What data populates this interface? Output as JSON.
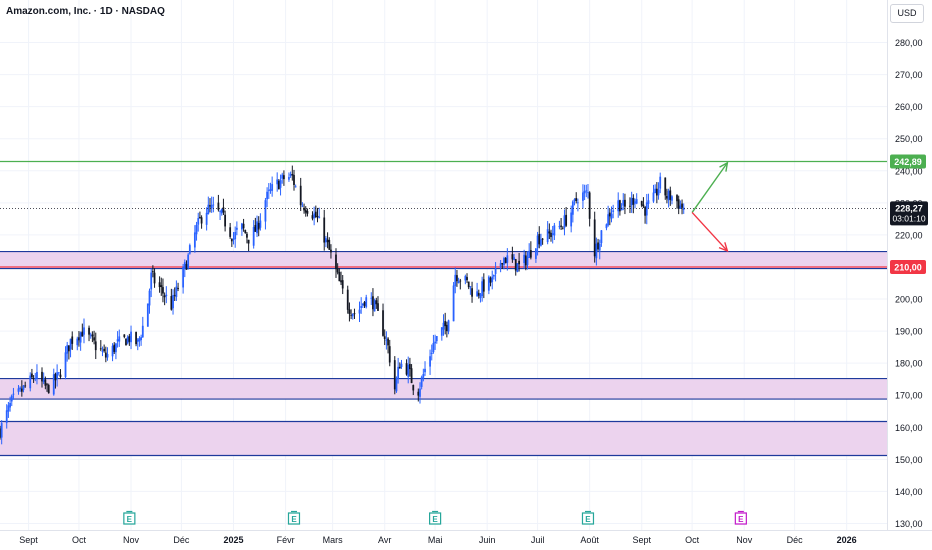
{
  "header": {
    "title": "Amazon.com, Inc. · 1D · NASDAQ",
    "currency": "USD"
  },
  "chart_data": {
    "type": "candlestick",
    "symbol": "Amazon.com, Inc.",
    "interval": "1D",
    "exchange": "NASDAQ",
    "currency": "USD",
    "ylim": [
      130,
      285
    ],
    "y_ticks": [
      130,
      140,
      150,
      160,
      170,
      180,
      190,
      200,
      210,
      220,
      230,
      240,
      250,
      260,
      270,
      280
    ],
    "y_tick_labels": [
      "130,00",
      "140,00",
      "150,00",
      "160,00",
      "170,00",
      "180,00",
      "190,00",
      "200,00",
      "210,00",
      "220,00",
      "230,00",
      "240,00",
      "250,00",
      "260,00",
      "270,00",
      "280,00"
    ],
    "x_start": "2024-08-15",
    "x_end": "2026-01-25",
    "x_ticks": [
      {
        "date": "2024-09-01",
        "label": "Sept",
        "bold": false
      },
      {
        "date": "2024-10-01",
        "label": "Oct",
        "bold": false
      },
      {
        "date": "2024-11-01",
        "label": "Nov",
        "bold": false
      },
      {
        "date": "2024-12-01",
        "label": "Déc",
        "bold": false
      },
      {
        "date": "2025-01-01",
        "label": "2025",
        "bold": true
      },
      {
        "date": "2025-02-01",
        "label": "Févr",
        "bold": false
      },
      {
        "date": "2025-03-01",
        "label": "Mars",
        "bold": false
      },
      {
        "date": "2025-04-01",
        "label": "Avr",
        "bold": false
      },
      {
        "date": "2025-05-01",
        "label": "Mai",
        "bold": false
      },
      {
        "date": "2025-06-01",
        "label": "Juin",
        "bold": false
      },
      {
        "date": "2025-07-01",
        "label": "Juil",
        "bold": false
      },
      {
        "date": "2025-08-01",
        "label": "Août",
        "bold": false
      },
      {
        "date": "2025-09-01",
        "label": "Sept",
        "bold": false
      },
      {
        "date": "2025-10-01",
        "label": "Oct",
        "bold": false
      },
      {
        "date": "2025-11-01",
        "label": "Nov",
        "bold": false
      },
      {
        "date": "2025-12-01",
        "label": "Déc",
        "bold": false
      },
      {
        "date": "2026-01-01",
        "label": "2026",
        "bold": true
      }
    ],
    "price_path": [
      [
        "2024-08-15",
        159
      ],
      [
        "2024-08-22",
        168
      ],
      [
        "2024-08-29",
        172
      ],
      [
        "2024-09-05",
        176
      ],
      [
        "2024-09-12",
        172
      ],
      [
        "2024-09-19",
        176
      ],
      [
        "2024-09-26",
        187
      ],
      [
        "2024-10-03",
        190
      ],
      [
        "2024-10-10",
        186
      ],
      [
        "2024-10-17",
        182
      ],
      [
        "2024-10-24",
        186
      ],
      [
        "2024-10-31",
        188
      ],
      [
        "2024-11-05",
        186
      ],
      [
        "2024-11-10",
        195
      ],
      [
        "2024-11-13",
        207
      ],
      [
        "2024-11-20",
        202
      ],
      [
        "2024-11-25",
        198
      ],
      [
        "2024-11-30",
        205
      ],
      [
        "2024-12-05",
        213
      ],
      [
        "2024-12-10",
        222
      ],
      [
        "2024-12-15",
        228
      ],
      [
        "2024-12-20",
        228
      ],
      [
        "2024-12-25",
        226
      ],
      [
        "2025-01-01",
        219
      ],
      [
        "2025-01-05",
        223
      ],
      [
        "2025-01-10",
        219
      ],
      [
        "2025-01-15",
        222
      ],
      [
        "2025-01-20",
        231
      ],
      [
        "2025-01-25",
        235
      ],
      [
        "2025-02-01",
        238
      ],
      [
        "2025-02-05",
        238
      ],
      [
        "2025-02-10",
        230
      ],
      [
        "2025-02-15",
        228
      ],
      [
        "2025-02-20",
        225
      ],
      [
        "2025-02-25",
        218
      ],
      [
        "2025-03-01",
        212
      ],
      [
        "2025-03-05",
        205
      ],
      [
        "2025-03-10",
        198
      ],
      [
        "2025-03-15",
        195
      ],
      [
        "2025-03-20",
        200
      ],
      [
        "2025-03-25",
        199
      ],
      [
        "2025-03-30",
        192
      ],
      [
        "2025-04-03",
        185
      ],
      [
        "2025-04-07",
        172
      ],
      [
        "2025-04-10",
        180
      ],
      [
        "2025-04-15",
        178
      ],
      [
        "2025-04-20",
        170
      ],
      [
        "2025-04-25",
        178
      ],
      [
        "2025-04-30",
        186
      ],
      [
        "2025-05-05",
        190
      ],
      [
        "2025-05-08",
        192
      ],
      [
        "2025-05-13",
        208
      ],
      [
        "2025-05-20",
        205
      ],
      [
        "2025-05-25",
        201
      ],
      [
        "2025-05-30",
        204
      ],
      [
        "2025-06-05",
        206
      ],
      [
        "2025-06-10",
        213
      ],
      [
        "2025-06-15",
        212
      ],
      [
        "2025-06-20",
        210
      ],
      [
        "2025-06-25",
        213
      ],
      [
        "2025-07-01",
        219
      ],
      [
        "2025-07-08",
        220
      ],
      [
        "2025-07-15",
        223
      ],
      [
        "2025-07-20",
        226
      ],
      [
        "2025-07-25",
        232
      ],
      [
        "2025-07-31",
        233
      ],
      [
        "2025-08-03",
        213
      ],
      [
        "2025-08-08",
        221
      ],
      [
        "2025-08-13",
        227
      ],
      [
        "2025-08-18",
        230
      ],
      [
        "2025-08-23",
        228
      ],
      [
        "2025-08-28",
        232
      ],
      [
        "2025-09-03",
        228
      ],
      [
        "2025-09-08",
        231
      ],
      [
        "2025-09-12",
        236
      ],
      [
        "2025-09-16",
        232
      ],
      [
        "2025-09-20",
        232
      ],
      [
        "2025-09-24",
        229
      ],
      [
        "2025-09-27",
        228.27
      ]
    ],
    "zones": [
      {
        "low": 209.5,
        "high": 214.8,
        "fill": "#ecd3ee",
        "border": "#1e3a9c"
      },
      {
        "low": 168.8,
        "high": 175.2,
        "fill": "#ecd3ee",
        "border": "#1e3a9c"
      },
      {
        "low": 151.2,
        "high": 161.8,
        "fill": "#ecd3ee",
        "border": "#1e3a9c"
      }
    ],
    "levels": [
      {
        "value": 242.89,
        "label": "242,89",
        "color": "#4caf50"
      },
      {
        "value": 210.0,
        "label": "210,00",
        "color": "#f23645"
      }
    ],
    "last_price": {
      "value": 228.27,
      "label": "228,27",
      "countdown": "03:01:10"
    },
    "projection": {
      "start": {
        "date": "2025-10-01",
        "value": 227
      },
      "up": {
        "date": "2025-10-22",
        "value": 242.5,
        "color": "#4caf50"
      },
      "down": {
        "date": "2025-10-22",
        "value": 215,
        "color": "#f23645"
      }
    },
    "events": [
      {
        "date": "2024-10-31",
        "icon": "E",
        "color": "#26a69a"
      },
      {
        "date": "2025-02-06",
        "icon": "E",
        "color": "#26a69a"
      },
      {
        "date": "2025-05-01",
        "icon": "E",
        "color": "#26a69a"
      },
      {
        "date": "2025-07-31",
        "icon": "E",
        "color": "#26a69a"
      },
      {
        "date": "2025-10-30",
        "icon": "E",
        "color": "#c21aca"
      }
    ],
    "colors": {
      "up_candle": "#2962ff",
      "down_candle": "#131722",
      "grid": "#f0f3fa"
    }
  }
}
